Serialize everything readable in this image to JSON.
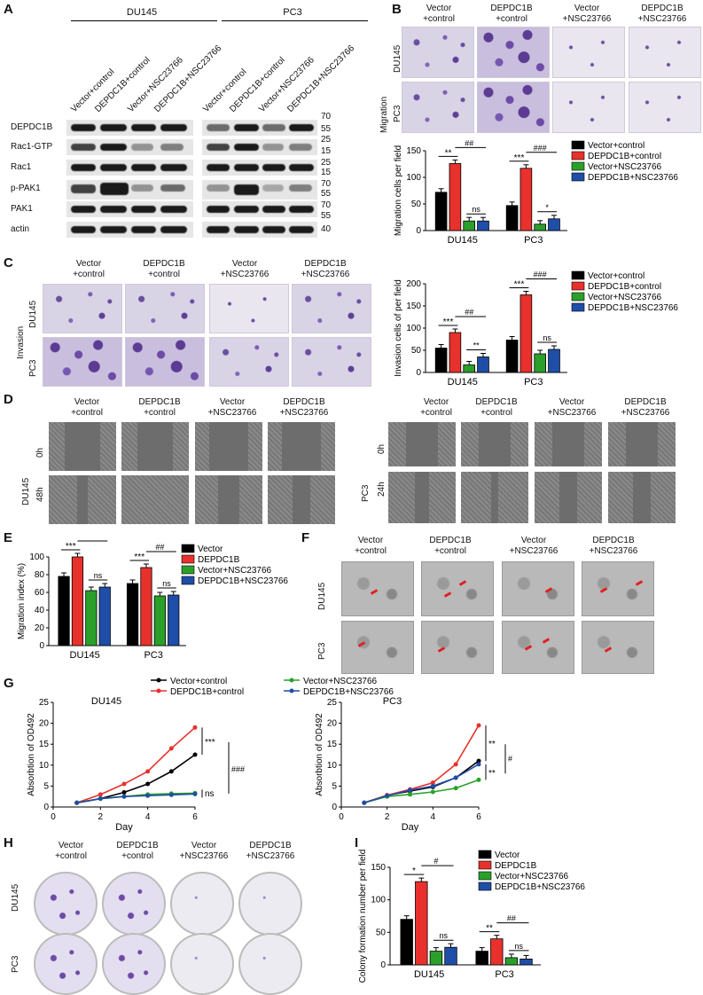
{
  "panels": {
    "A": "A",
    "B": "B",
    "C": "C",
    "D": "D",
    "E": "E",
    "F": "F",
    "G": "G",
    "H": "H",
    "I": "I"
  },
  "colors": {
    "vector": "#000000",
    "depdc1b": "#e8312c",
    "vector_nsc": "#2aa02a",
    "depdc1b_nsc": "#1f4ea8"
  },
  "groups": {
    "vector_control": [
      "Vector",
      "+control"
    ],
    "depdc1b_control": [
      "DEPDC1B",
      "+control"
    ],
    "vector_nsc": [
      "Vector",
      "+NSC23766"
    ],
    "depdc1b_nsc": [
      "DEPDC1B",
      "+NSC23766"
    ]
  },
  "lines": {
    "du145": "DU145",
    "pc3": "PC3"
  },
  "blot": {
    "lanes": [
      "Vector+control",
      "DEPDC1B+control",
      "Vector+NSC23766",
      "DEPDC1B+NSC23766"
    ],
    "rows": [
      "DEPDC1B",
      "Rac1-GTP",
      "Rac1",
      "p-PAK1",
      "PAK1",
      "actin"
    ],
    "mw": [
      "70",
      "55",
      "25",
      "15",
      "25",
      "15",
      "70",
      "55",
      "70",
      "55",
      "40"
    ]
  },
  "side_labels": {
    "migration": "Migration",
    "invasion": "Invasion",
    "h0": "0h",
    "h48": "48h",
    "h24": "24h"
  },
  "legend4": [
    "Vector+control",
    "DEPDC1B+control",
    "Vector+NSC23766",
    "DEPDC1B+NSC23766"
  ],
  "legend4b": [
    "Vector",
    "DEPDC1B",
    "Vector+NSC23766",
    "DEPDC1B+NSC23766"
  ],
  "chart_data": [
    {
      "type": "bar",
      "id": "B",
      "ylabel": "Migration cells per field",
      "categories": [
        "DU145",
        "PC3"
      ],
      "ylim": [
        0,
        150
      ],
      "yticks": [
        0,
        50,
        100,
        150
      ],
      "series": [
        {
          "name": "Vector+control",
          "values": [
            72,
            47
          ]
        },
        {
          "name": "DEPDC1B+control",
          "values": [
            126,
            117
          ]
        },
        {
          "name": "Vector+NSC23766",
          "values": [
            18,
            12
          ]
        },
        {
          "name": "DEPDC1B+NSC23766",
          "values": [
            18,
            22
          ]
        }
      ],
      "annotations": [
        "**",
        "##",
        "ns",
        "***",
        "###",
        "*"
      ]
    },
    {
      "type": "bar",
      "id": "C",
      "ylabel": "Invasion cells of per field",
      "categories": [
        "DU145",
        "PC3"
      ],
      "ylim": [
        0,
        200
      ],
      "yticks": [
        0,
        50,
        100,
        150,
        200
      ],
      "series": [
        {
          "name": "Vector+control",
          "values": [
            55,
            73
          ]
        },
        {
          "name": "DEPDC1B+control",
          "values": [
            90,
            175
          ]
        },
        {
          "name": "Vector+NSC23766",
          "values": [
            17,
            42
          ]
        },
        {
          "name": "DEPDC1B+NSC23766",
          "values": [
            35,
            52
          ]
        }
      ],
      "annotations": [
        "***",
        "##",
        "**",
        "***",
        "###",
        "ns"
      ]
    },
    {
      "type": "bar",
      "id": "E",
      "ylabel": "Migration index (%)",
      "categories": [
        "DU145",
        "PC3"
      ],
      "ylim": [
        0,
        100
      ],
      "yticks": [
        0,
        20,
        40,
        60,
        80,
        100
      ],
      "series": [
        {
          "name": "Vector",
          "values": [
            78,
            70
          ]
        },
        {
          "name": "DEPDC1B",
          "values": [
            100,
            88
          ]
        },
        {
          "name": "Vector+NSC23766",
          "values": [
            62,
            56
          ]
        },
        {
          "name": "DEPDC1B+NSC23766",
          "values": [
            66,
            57
          ]
        }
      ],
      "annotations": [
        "***",
        "##",
        "ns",
        "***",
        "##",
        "ns"
      ]
    },
    {
      "type": "line",
      "id": "G1",
      "title": "DU145",
      "xlabel": "Day",
      "ylabel": "Absorbtion of OD492",
      "xlim": [
        0,
        6
      ],
      "ylim": [
        0,
        25
      ],
      "xticks": [
        0,
        2,
        4,
        6
      ],
      "yticks": [
        0,
        5,
        10,
        15,
        20,
        25
      ],
      "x": [
        1,
        2,
        3,
        4,
        5,
        6
      ],
      "series": [
        {
          "name": "Vector+control",
          "values": [
            1,
            2,
            3.5,
            5.5,
            8.5,
            12.5
          ]
        },
        {
          "name": "DEPDC1B+control",
          "values": [
            1,
            3,
            5.5,
            8.5,
            14,
            19
          ]
        },
        {
          "name": "Vector+NSC23766",
          "values": [
            1,
            2,
            2.5,
            3,
            3.2,
            3.3
          ]
        },
        {
          "name": "DEPDC1B+NSC23766",
          "values": [
            1,
            2,
            2.5,
            2.7,
            2.9,
            3.1
          ]
        }
      ],
      "annotations": [
        "***",
        "ns",
        "###"
      ]
    },
    {
      "type": "line",
      "id": "G2",
      "title": "PC3",
      "xlabel": "Day",
      "ylabel": "Absorbtion of OD492",
      "xlim": [
        0,
        6
      ],
      "ylim": [
        0,
        25
      ],
      "xticks": [
        0,
        2,
        4,
        6
      ],
      "yticks": [
        0,
        5,
        10,
        15,
        20,
        25
      ],
      "x": [
        1,
        2,
        3,
        4,
        5,
        6
      ],
      "series": [
        {
          "name": "Vector+control",
          "values": [
            1,
            2.8,
            3.8,
            4.8,
            7,
            11
          ]
        },
        {
          "name": "DEPDC1B+control",
          "values": [
            1,
            2.8,
            4.2,
            5.8,
            10.2,
            19.5
          ]
        },
        {
          "name": "Vector+NSC23766",
          "values": [
            1,
            2.5,
            3,
            3.6,
            4.5,
            6.5
          ]
        },
        {
          "name": "DEPDC1B+NSC23766",
          "values": [
            1,
            2.7,
            4,
            5,
            7,
            10.2
          ]
        }
      ],
      "annotations": [
        "**",
        "**",
        "#"
      ]
    },
    {
      "type": "bar",
      "id": "I",
      "ylabel": "Colony formation number per field",
      "categories": [
        "DU145",
        "PC3"
      ],
      "ylim": [
        0,
        150
      ],
      "yticks": [
        0,
        50,
        100,
        150
      ],
      "series": [
        {
          "name": "Vector",
          "values": [
            70,
            21
          ]
        },
        {
          "name": "DEPDC1B",
          "values": [
            128,
            40
          ]
        },
        {
          "name": "Vector+NSC23766",
          "values": [
            21,
            11
          ]
        },
        {
          "name": "DEPDC1B+NSC23766",
          "values": [
            27,
            9
          ]
        }
      ],
      "annotations": [
        "*",
        "#",
        "ns",
        "**",
        "##",
        "ns"
      ]
    }
  ],
  "g_legend": [
    "Vector+control",
    "Vector+NSC23766",
    "DEPDC1B+control",
    "DEPDC1B+NSC23766"
  ]
}
